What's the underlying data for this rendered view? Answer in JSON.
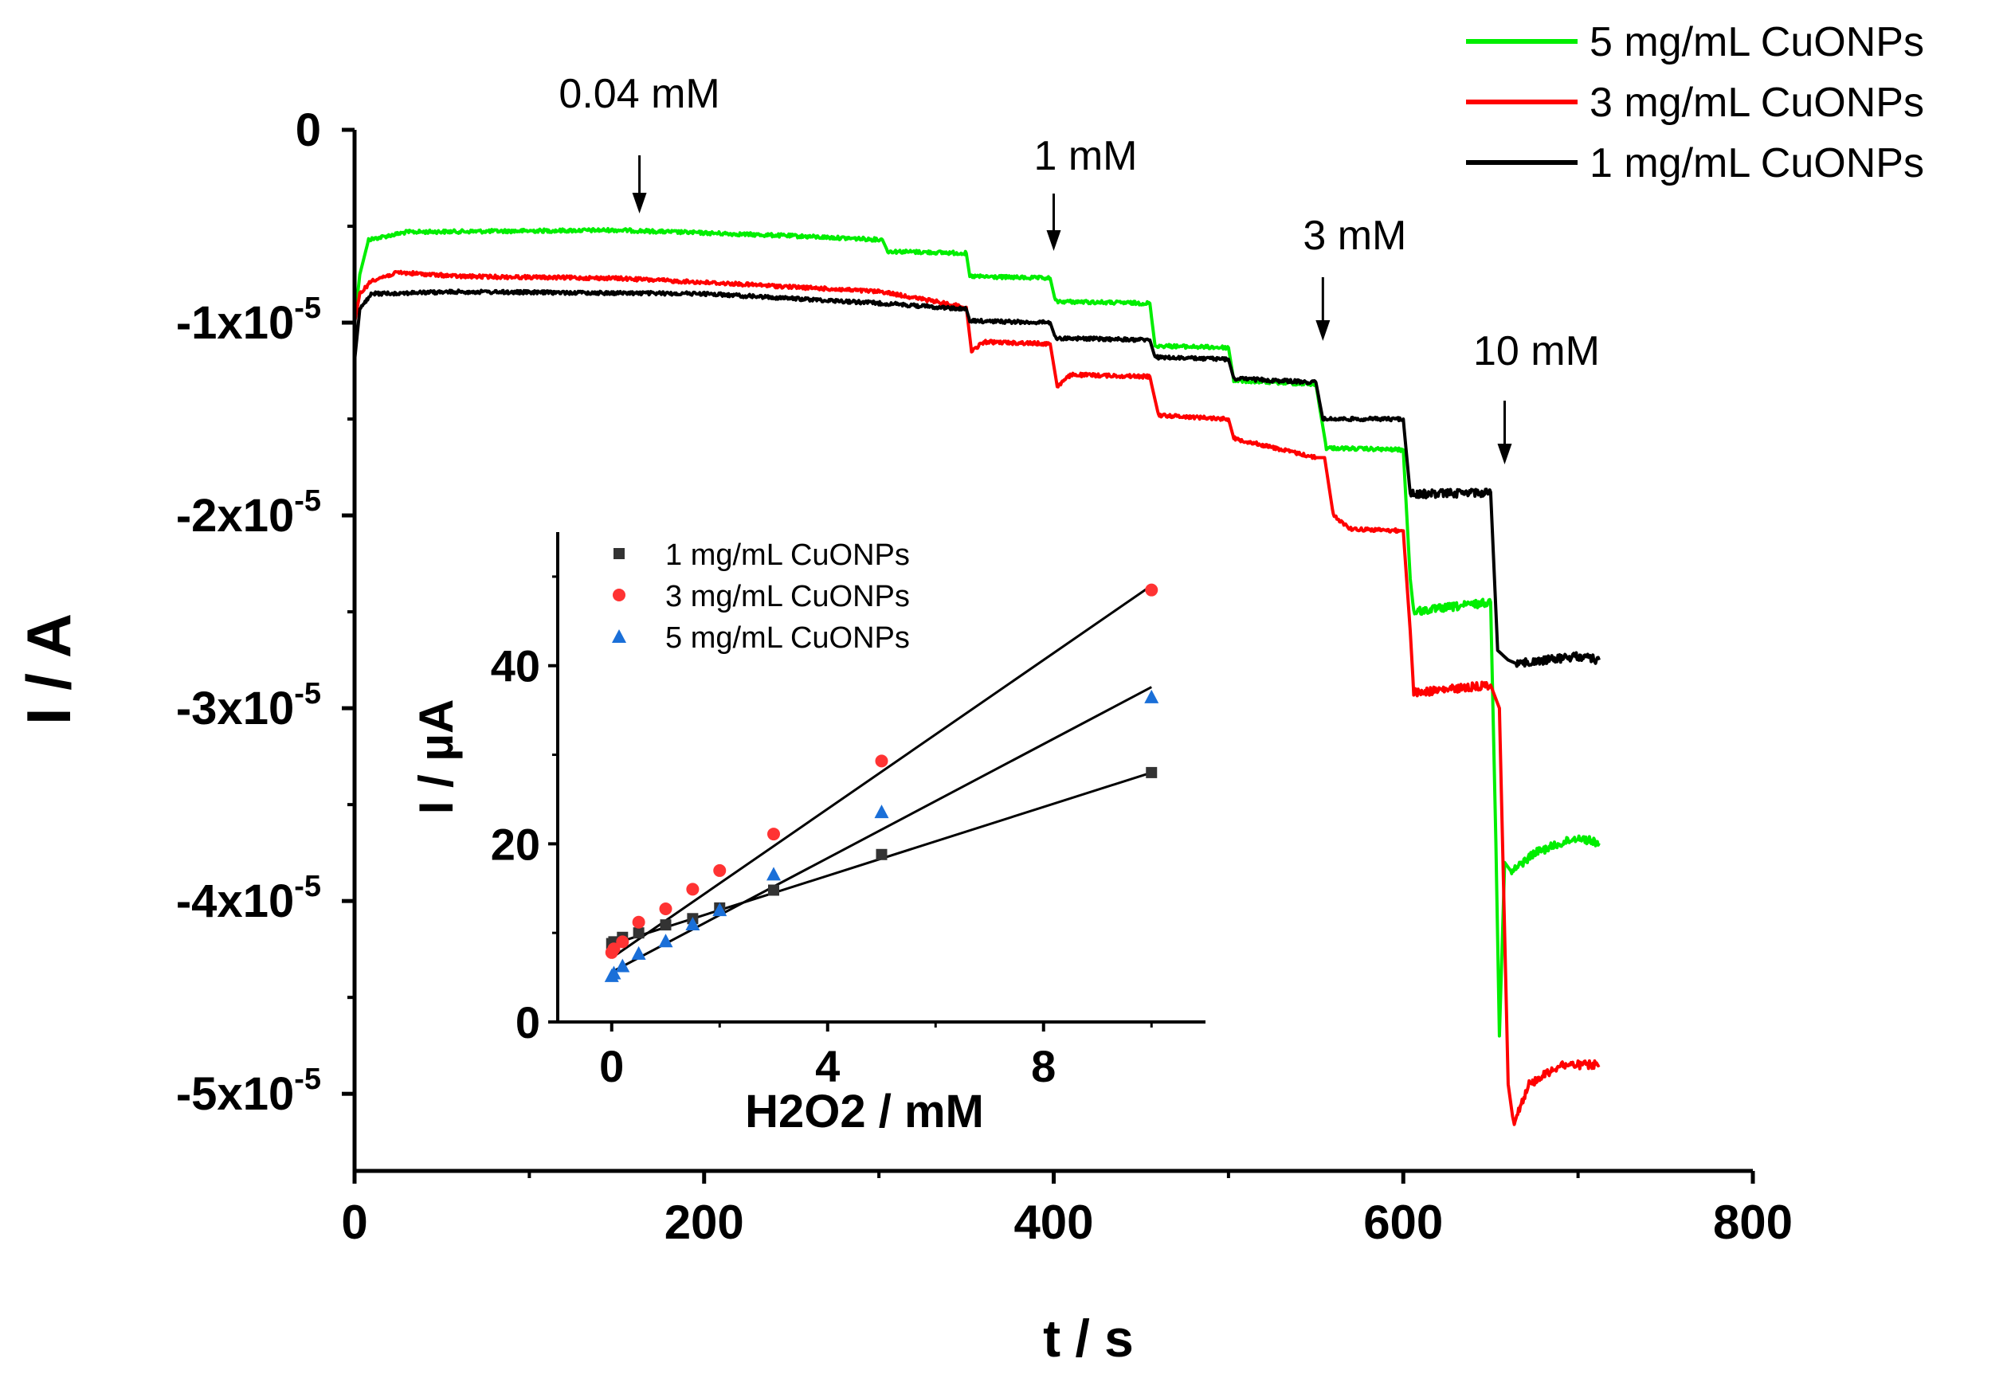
{
  "chart_data": [
    {
      "type": "line",
      "id": "main",
      "xlabel": "t / s",
      "ylabel": "I / A",
      "xlim": [
        0,
        800
      ],
      "ylim": [
        -5.4e-05,
        0
      ],
      "xticks": [
        {
          "v": 0,
          "label": "0"
        },
        {
          "v": 200,
          "label": "200"
        },
        {
          "v": 400,
          "label": "400"
        },
        {
          "v": 600,
          "label": "600"
        },
        {
          "v": 800,
          "label": "800"
        }
      ],
      "yticks": [
        {
          "v": 0,
          "base": "0",
          "exp": ""
        },
        {
          "v": -1e-05,
          "base": "-1x10",
          "exp": "-5"
        },
        {
          "v": -2e-05,
          "base": "-2x10",
          "exp": "-5"
        },
        {
          "v": -3e-05,
          "base": "-3x10",
          "exp": "-5"
        },
        {
          "v": -4e-05,
          "base": "-4x10",
          "exp": "-5"
        },
        {
          "v": -5e-05,
          "base": "-5x10",
          "exp": "-5"
        }
      ],
      "legend_position": "top-right",
      "series": [
        {
          "name": "5 mg/mL CuONPs",
          "color": "#00ee00",
          "points": [
            [
              0,
              -1e-05
            ],
            [
              3,
              -7.5e-06
            ],
            [
              8,
              -5.7e-06
            ],
            [
              30,
              -5.3e-06
            ],
            [
              150,
              -5.2e-06
            ],
            [
              250,
              -5.5e-06
            ],
            [
              302,
              -5.7e-06
            ],
            [
              305,
              -6.3e-06
            ],
            [
              350,
              -6.4e-06
            ],
            [
              352,
              -7.6e-06
            ],
            [
              398,
              -7.7e-06
            ],
            [
              401,
              -8.9e-06
            ],
            [
              455,
              -9e-06
            ],
            [
              458,
              -1.12e-05
            ],
            [
              500,
              -1.13e-05
            ],
            [
              503,
              -1.3e-05
            ],
            [
              550,
              -1.32e-05
            ],
            [
              556,
              -1.65e-05
            ],
            [
              600,
              -1.66e-05
            ],
            [
              604,
              -2.33e-05
            ],
            [
              606,
              -2.5e-05
            ],
            [
              650,
              -2.45e-05
            ],
            [
              653,
              -3.7e-05
            ],
            [
              655,
              -4.7e-05
            ],
            [
              658,
              -3.8e-05
            ],
            [
              662,
              -3.85e-05
            ],
            [
              675,
              -3.75e-05
            ],
            [
              700,
              -3.67e-05
            ],
            [
              712,
              -3.7e-05
            ]
          ]
        },
        {
          "name": "3 mg/mL CuONPs",
          "color": "#ff0000",
          "points": [
            [
              0,
              -1e-05
            ],
            [
              3,
              -8.5e-06
            ],
            [
              10,
              -7.8e-06
            ],
            [
              25,
              -7.4e-06
            ],
            [
              60,
              -7.6e-06
            ],
            [
              150,
              -7.7e-06
            ],
            [
              220,
              -8e-06
            ],
            [
              302,
              -8.4e-06
            ],
            [
              350,
              -9.2e-06
            ],
            [
              353,
              -1.15e-05
            ],
            [
              360,
              -1.1e-05
            ],
            [
              398,
              -1.11e-05
            ],
            [
              402,
              -1.33e-05
            ],
            [
              410,
              -1.27e-05
            ],
            [
              455,
              -1.28e-05
            ],
            [
              460,
              -1.48e-05
            ],
            [
              500,
              -1.5e-05
            ],
            [
              503,
              -1.6e-05
            ],
            [
              550,
              -1.7e-05
            ],
            [
              555,
              -1.7e-05
            ],
            [
              560,
              -2e-05
            ],
            [
              570,
              -2.07e-05
            ],
            [
              600,
              -2.08e-05
            ],
            [
              604,
              -2.6e-05
            ],
            [
              606,
              -2.92e-05
            ],
            [
              650,
              -2.88e-05
            ],
            [
              655,
              -3e-05
            ],
            [
              660,
              -4.95e-05
            ],
            [
              663,
              -5.15e-05
            ],
            [
              672,
              -4.95e-05
            ],
            [
              690,
              -4.85e-05
            ],
            [
              712,
              -4.85e-05
            ]
          ]
        },
        {
          "name": "1 mg/mL CuONPs",
          "color": "#000000",
          "points": [
            [
              0,
              -1.2e-05
            ],
            [
              3,
              -9.3e-06
            ],
            [
              10,
              -8.5e-06
            ],
            [
              60,
              -8.4e-06
            ],
            [
              200,
              -8.5e-06
            ],
            [
              302,
              -9e-06
            ],
            [
              350,
              -9.3e-06
            ],
            [
              352,
              -9.9e-06
            ],
            [
              398,
              -1e-05
            ],
            [
              401,
              -1.08e-05
            ],
            [
              455,
              -1.09e-05
            ],
            [
              458,
              -1.18e-05
            ],
            [
              500,
              -1.19e-05
            ],
            [
              503,
              -1.29e-05
            ],
            [
              550,
              -1.31e-05
            ],
            [
              554,
              -1.5e-05
            ],
            [
              600,
              -1.5e-05
            ],
            [
              604,
              -1.89e-05
            ],
            [
              650,
              -1.88e-05
            ],
            [
              654,
              -2.7e-05
            ],
            [
              660,
              -2.75e-05
            ],
            [
              665,
              -2.77e-05
            ],
            [
              700,
              -2.73e-05
            ],
            [
              712,
              -2.75e-05
            ]
          ]
        }
      ],
      "annotations": [
        {
          "text": "0.04 mM",
          "x": 163
        },
        {
          "text": "1 mM",
          "x": 400
        },
        {
          "text": "3 mM",
          "x": 554
        },
        {
          "text": "10 mM",
          "x": 658
        }
      ]
    },
    {
      "type": "scatter",
      "id": "inset",
      "xlabel": "H2O2 / mM",
      "ylabel": "I / µA",
      "xlim": [
        -1,
        11
      ],
      "ylim": [
        0,
        55
      ],
      "xticks": [
        {
          "v": 0,
          "label": "0"
        },
        {
          "v": 4,
          "label": "4"
        },
        {
          "v": 8,
          "label": "8"
        }
      ],
      "yticks": [
        {
          "v": 0,
          "label": "0"
        },
        {
          "v": 20,
          "label": "20"
        },
        {
          "v": 40,
          "label": "40"
        }
      ],
      "legend_position": "top-left",
      "series": [
        {
          "name": "1 mg/mL CuONPs",
          "marker": "square",
          "color": "#333333",
          "x": [
            0,
            0.04,
            0.2,
            0.5,
            1,
            1.5,
            2,
            3,
            5,
            10
          ],
          "y": [
            8.8,
            9.0,
            9.5,
            10.0,
            10.9,
            11.6,
            12.8,
            14.8,
            18.8,
            28.0
          ],
          "fit": [
            [
              0,
              8.7
            ],
            [
              10,
              28.0
            ]
          ]
        },
        {
          "name": "3 mg/mL CuONPs",
          "marker": "circle",
          "color": "#ff3333",
          "x": [
            0,
            0.04,
            0.2,
            0.5,
            1,
            1.5,
            2,
            3,
            5,
            10
          ],
          "y": [
            7.8,
            8.2,
            9.0,
            11.2,
            12.7,
            14.9,
            17.0,
            21.1,
            29.3,
            48.5
          ],
          "fit": [
            [
              0,
              7.2
            ],
            [
              10,
              49.0
            ]
          ]
        },
        {
          "name": "5 mg/mL CuONPs",
          "marker": "triangle",
          "color": "#1a6fd8",
          "x": [
            0,
            0.04,
            0.2,
            0.5,
            1,
            1.5,
            2,
            3,
            5,
            10
          ],
          "y": [
            5.2,
            5.5,
            6.3,
            7.7,
            9.1,
            11.0,
            12.6,
            16.6,
            23.6,
            36.5
          ],
          "fit": [
            [
              0,
              5.6
            ],
            [
              10,
              37.6
            ]
          ]
        }
      ]
    }
  ]
}
